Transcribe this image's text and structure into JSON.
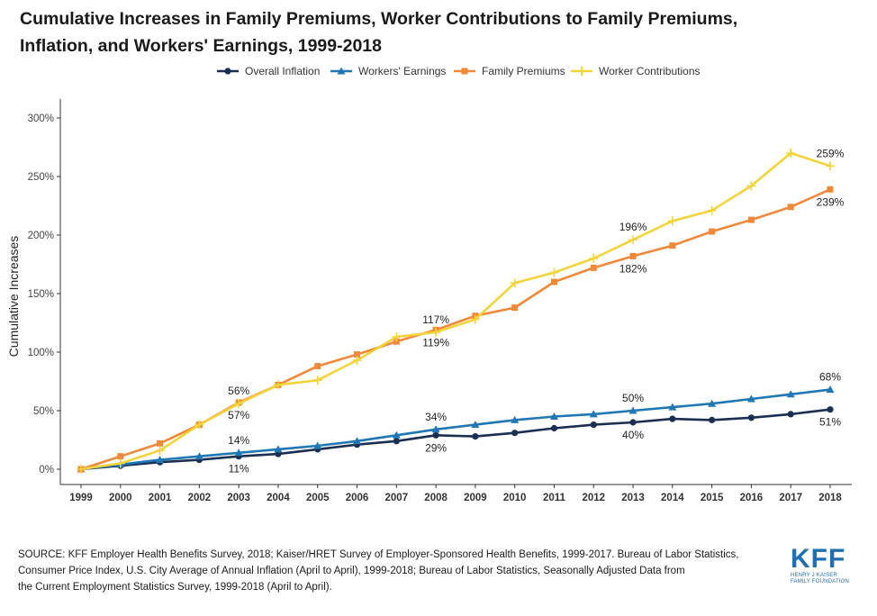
{
  "title": {
    "line1": "Cumulative Increases in Family Premiums, Worker Contributions to Family Premiums,",
    "line2": "Inflation, and Workers' Earnings, 1999-2018"
  },
  "source": {
    "line1": "SOURCE: KFF Employer Health Benefits Survey, 2018; Kaiser/HRET Survey of Employer-Sponsored Health Benefits, 1999-2017. Bureau of Labor Statistics,",
    "line2": "Consumer Price Index, U.S. City Average of Annual Inflation (April to April), 1999-2018; Bureau of Labor Statistics, Seasonally Adjusted Data from",
    "line3": "the Current Employment Statistics Survey, 1999-2018 (April to April)."
  },
  "logo": {
    "main": "KFF",
    "sub1": "HENRY J KAISER",
    "sub2": "FAMILY FOUNDATION"
  },
  "chart_data": {
    "type": "line",
    "title": "",
    "xlabel": "",
    "ylabel": "Cumulative Increases",
    "ylim": [
      0,
      300
    ],
    "yticks": [
      0,
      50,
      100,
      150,
      200,
      250,
      300
    ],
    "ytick_labels": [
      "0%",
      "50%",
      "100%",
      "150%",
      "200%",
      "250%",
      "300%"
    ],
    "grid": false,
    "legend_position": "top",
    "categories": [
      "1999",
      "2000",
      "2001",
      "2002",
      "2003",
      "2004",
      "2005",
      "2006",
      "2007",
      "2008",
      "2009",
      "2010",
      "2011",
      "2012",
      "2013",
      "2014",
      "2015",
      "2016",
      "2017",
      "2018"
    ],
    "series": [
      {
        "name": "Overall Inflation",
        "color": "#1b2f52",
        "marker": "circle",
        "values": [
          0,
          3,
          6,
          8,
          11,
          13,
          17,
          21,
          24,
          29,
          28,
          31,
          35,
          38,
          40,
          43,
          42,
          44,
          47,
          51
        ],
        "labels": [
          {
            "index": 4,
            "text": "11%",
            "pos": "below"
          },
          {
            "index": 9,
            "text": "29%",
            "pos": "below"
          },
          {
            "index": 14,
            "text": "40%",
            "pos": "below"
          },
          {
            "index": 19,
            "text": "51%",
            "pos": "below"
          }
        ]
      },
      {
        "name": "Workers' Earnings",
        "color": "#1f77b4",
        "marker": "triangle",
        "values": [
          0,
          4,
          8,
          11,
          14,
          17,
          20,
          24,
          29,
          34,
          38,
          42,
          45,
          47,
          50,
          53,
          56,
          60,
          64,
          68
        ],
        "labels": [
          {
            "index": 4,
            "text": "14%",
            "pos": "above"
          },
          {
            "index": 9,
            "text": "34%",
            "pos": "above"
          },
          {
            "index": 14,
            "text": "50%",
            "pos": "above"
          },
          {
            "index": 19,
            "text": "68%",
            "pos": "above"
          }
        ]
      },
      {
        "name": "Family Premiums",
        "color": "#f0883a",
        "marker": "square",
        "values": [
          0,
          11,
          22,
          38,
          57,
          72,
          88,
          98,
          109,
          119,
          131,
          138,
          160,
          172,
          182,
          191,
          203,
          213,
          224,
          239
        ],
        "labels": [
          {
            "index": 4,
            "text": "57%",
            "pos": "below"
          },
          {
            "index": 9,
            "text": "119%",
            "pos": "below"
          },
          {
            "index": 14,
            "text": "182%",
            "pos": "below"
          },
          {
            "index": 19,
            "text": "239%",
            "pos": "below"
          }
        ]
      },
      {
        "name": "Worker Contributions",
        "color": "#f2d43a",
        "marker": "plus",
        "values": [
          0,
          5,
          16,
          38,
          56,
          72,
          76,
          93,
          113,
          117,
          128,
          159,
          168,
          180,
          196,
          212,
          221,
          242,
          270,
          259
        ],
        "labels": [
          {
            "index": 4,
            "text": "56%",
            "pos": "above"
          },
          {
            "index": 9,
            "text": "117%",
            "pos": "above"
          },
          {
            "index": 14,
            "text": "196%",
            "pos": "above"
          },
          {
            "index": 19,
            "text": "259%",
            "pos": "above"
          }
        ]
      }
    ]
  }
}
